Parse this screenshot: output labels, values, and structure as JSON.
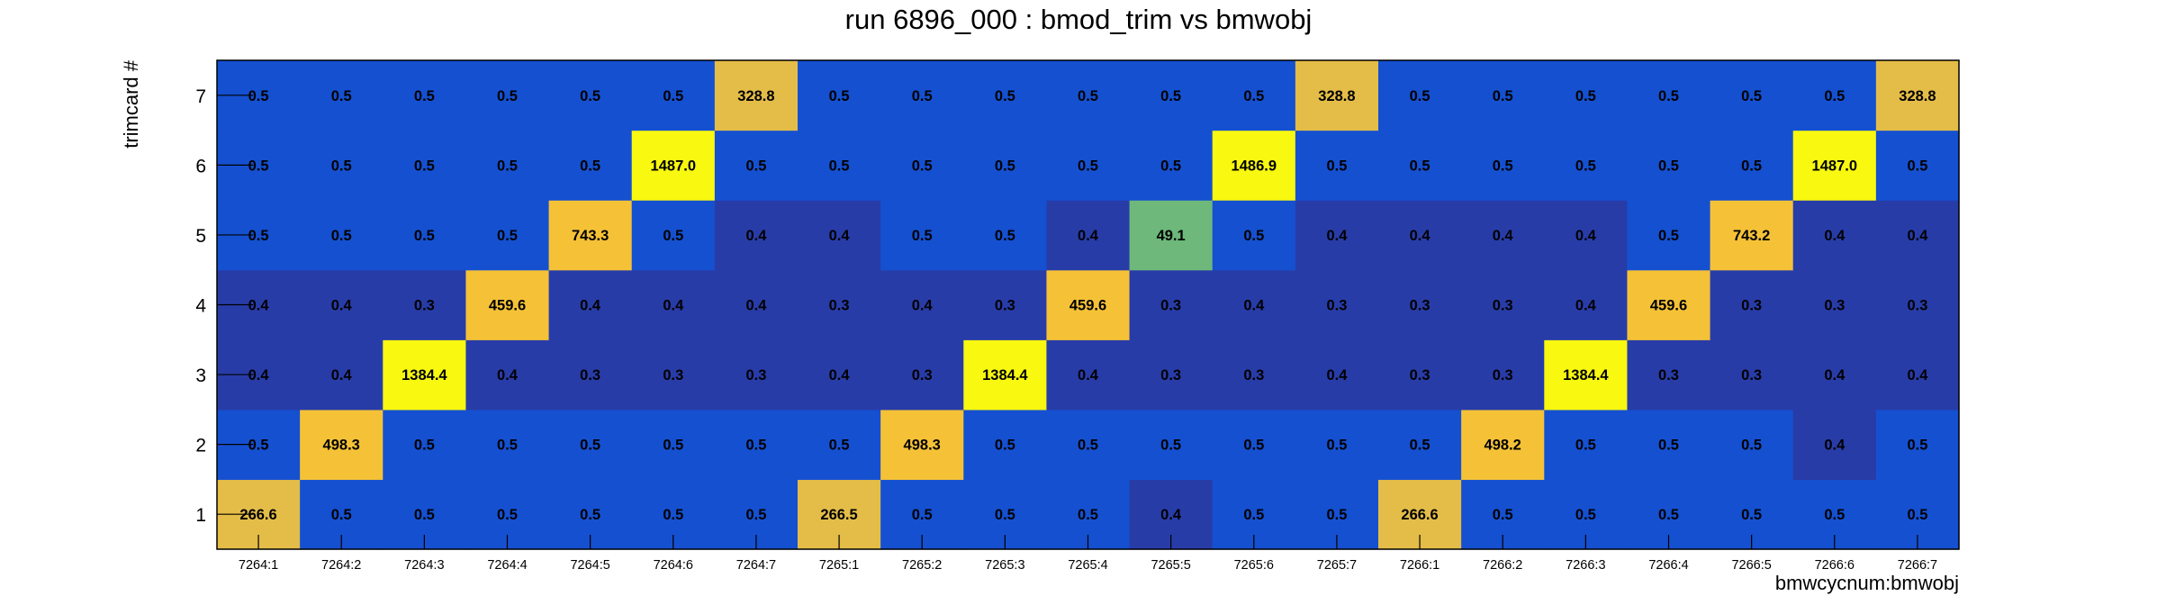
{
  "chart_data": {
    "type": "heatmap",
    "title": "run 6896_000 : bmod_trim vs bmwobj",
    "xlabel": "bmwcycnum:bmwobj",
    "ylabel": "trimcard #",
    "x_categories": [
      "7264:1",
      "7264:2",
      "7264:3",
      "7264:4",
      "7264:5",
      "7264:6",
      "7264:7",
      "7265:1",
      "7265:2",
      "7265:3",
      "7265:4",
      "7265:5",
      "7265:6",
      "7265:7",
      "7266:1",
      "7266:2",
      "7266:3",
      "7266:4",
      "7266:5",
      "7266:6",
      "7266:7"
    ],
    "y_categories": [
      "1",
      "2",
      "3",
      "4",
      "5",
      "6",
      "7"
    ],
    "values": [
      [
        266.6,
        0.5,
        0.5,
        0.5,
        0.5,
        0.5,
        0.5,
        266.5,
        0.5,
        0.5,
        0.5,
        0.4,
        0.5,
        0.5,
        266.6,
        0.5,
        0.5,
        0.5,
        0.5,
        0.5,
        0.5
      ],
      [
        0.5,
        498.3,
        0.5,
        0.5,
        0.5,
        0.5,
        0.5,
        0.5,
        498.3,
        0.5,
        0.5,
        0.5,
        0.5,
        0.5,
        0.5,
        498.2,
        0.5,
        0.5,
        0.5,
        0.4,
        0.5
      ],
      [
        0.4,
        0.4,
        1384.4,
        0.4,
        0.3,
        0.3,
        0.3,
        0.4,
        0.3,
        1384.4,
        0.4,
        0.3,
        0.3,
        0.4,
        0.3,
        0.3,
        1384.4,
        0.3,
        0.3,
        0.4,
        0.4
      ],
      [
        0.4,
        0.4,
        0.3,
        459.6,
        0.4,
        0.4,
        0.4,
        0.3,
        0.4,
        0.3,
        459.6,
        0.3,
        0.4,
        0.3,
        0.3,
        0.3,
        0.4,
        459.6,
        0.3,
        0.3,
        0.3
      ],
      [
        0.5,
        0.5,
        0.5,
        0.5,
        743.3,
        0.5,
        0.4,
        0.4,
        0.5,
        0.5,
        0.4,
        49.1,
        0.5,
        0.4,
        0.4,
        0.4,
        0.4,
        0.5,
        743.2,
        0.4,
        0.4
      ],
      [
        0.5,
        0.5,
        0.5,
        0.5,
        0.5,
        1487.0,
        0.5,
        0.5,
        0.5,
        0.5,
        0.5,
        0.5,
        1486.9,
        0.5,
        0.5,
        0.5,
        0.5,
        0.5,
        0.5,
        1487.0,
        0.5
      ],
      [
        0.5,
        0.5,
        0.5,
        0.5,
        0.5,
        0.5,
        328.8,
        0.5,
        0.5,
        0.5,
        0.5,
        0.5,
        0.5,
        328.8,
        0.5,
        0.5,
        0.5,
        0.5,
        0.5,
        0.5,
        328.8
      ]
    ],
    "colors": {
      "high_low_bright": "#1550d0",
      "high_low_dark": "#283ca8",
      "mid_green": "#6db87a",
      "gold": "#e4bd48",
      "orange_gold": "#f5c237",
      "yellow": "#f8f810",
      "frame": "#000000",
      "text": "#000000"
    }
  }
}
